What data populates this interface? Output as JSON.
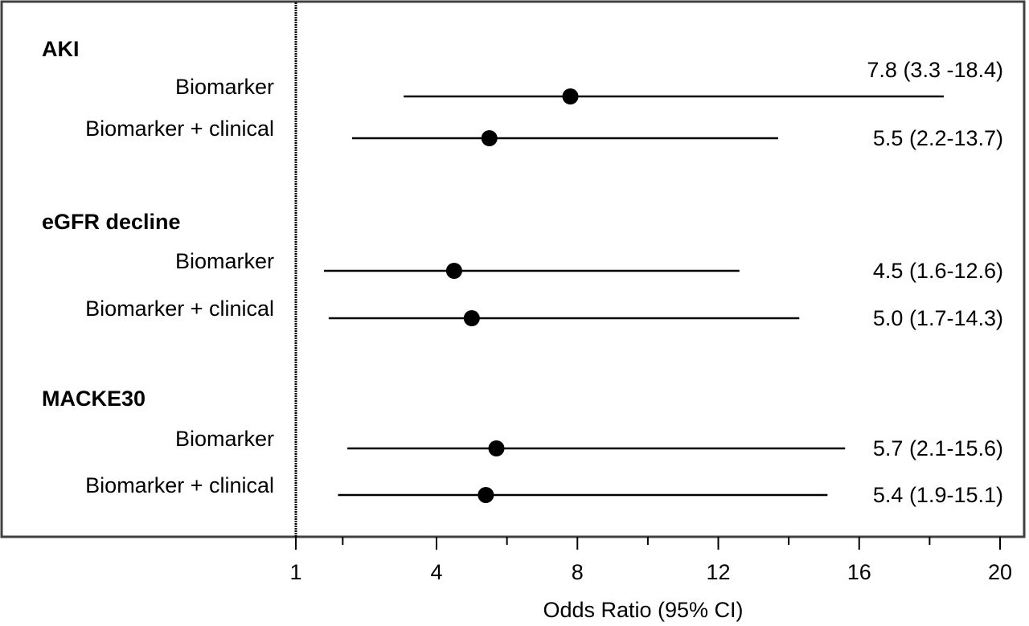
{
  "chart_data": {
    "type": "forest",
    "xlabel": "Odds Ratio (95% CI)",
    "xlim": [
      1,
      20
    ],
    "xticks_labeled": [
      1,
      4,
      8,
      12,
      16,
      20
    ],
    "xticks_minor": [
      2,
      6,
      10,
      14,
      18
    ],
    "reference_line": 1,
    "groups": [
      {
        "name": "AKI",
        "rows": [
          {
            "label": "Biomarker",
            "or": 7.8,
            "lo": 3.3,
            "hi": 18.4,
            "text": "7.8 (3.3 -18.4)"
          },
          {
            "label": "Biomarker + clinical",
            "or": 5.5,
            "lo": 2.2,
            "hi": 13.7,
            "text": "5.5 (2.2-13.7)"
          }
        ]
      },
      {
        "name": "eGFR decline",
        "rows": [
          {
            "label": "Biomarker",
            "or": 4.5,
            "lo": 1.6,
            "hi": 12.6,
            "text": "4.5 (1.6-12.6)"
          },
          {
            "label": "Biomarker + clinical",
            "or": 5.0,
            "lo": 1.7,
            "hi": 14.3,
            "text": "5.0 (1.7-14.3)"
          }
        ]
      },
      {
        "name": "MACKE30",
        "rows": [
          {
            "label": "Biomarker",
            "or": 5.7,
            "lo": 2.1,
            "hi": 15.6,
            "text": "5.7 (2.1-15.6)"
          },
          {
            "label": "Biomarker + clinical",
            "or": 5.4,
            "lo": 1.9,
            "hi": 15.1,
            "text": "5.4 (1.9-15.1)"
          }
        ]
      }
    ],
    "colors": {
      "marker": "#000000",
      "line": "#000000",
      "frame": "#404040"
    }
  }
}
